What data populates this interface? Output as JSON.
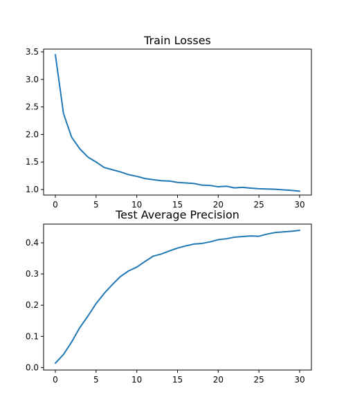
{
  "chart_data": [
    {
      "type": "line",
      "title": "Train Losses",
      "xlabel": "",
      "ylabel": "",
      "xlim": [
        0,
        30
      ],
      "ylim": [
        0.9,
        3.55
      ],
      "xticks": [
        0,
        5,
        10,
        15,
        20,
        25,
        30
      ],
      "yticks": [
        1.0,
        1.5,
        2.0,
        2.5,
        3.0,
        3.5
      ],
      "ytick_labels": [
        "1.0",
        "1.5",
        "2.0",
        "2.5",
        "3.0",
        "3.5"
      ],
      "grid": false,
      "color": "#1f77b4",
      "x": [
        0,
        1,
        2,
        3,
        4,
        5,
        6,
        7,
        8,
        9,
        10,
        11,
        12,
        13,
        14,
        15,
        16,
        17,
        18,
        19,
        20,
        21,
        22,
        23,
        24,
        25,
        26,
        27,
        28,
        29,
        30
      ],
      "series": [
        {
          "values": [
            3.45,
            2.38,
            1.95,
            1.74,
            1.59,
            1.5,
            1.4,
            1.36,
            1.32,
            1.27,
            1.24,
            1.2,
            1.18,
            1.16,
            1.155,
            1.13,
            1.12,
            1.11,
            1.08,
            1.075,
            1.05,
            1.06,
            1.03,
            1.04,
            1.025,
            1.015,
            1.01,
            1.005,
            0.995,
            0.985,
            0.97
          ]
        }
      ]
    },
    {
      "type": "line",
      "title": "Test Average Precision",
      "xlabel": "",
      "ylabel": "",
      "xlim": [
        0,
        30
      ],
      "ylim": [
        -0.008,
        0.46
      ],
      "xticks": [
        0,
        5,
        10,
        15,
        20,
        25,
        30
      ],
      "yticks": [
        0.0,
        0.1,
        0.2,
        0.3,
        0.4
      ],
      "ytick_labels": [
        "0.0",
        "0.1",
        "0.2",
        "0.3",
        "0.4"
      ],
      "grid": false,
      "color": "#1f77b4",
      "x": [
        0,
        1,
        2,
        3,
        4,
        5,
        6,
        7,
        8,
        9,
        10,
        11,
        12,
        13,
        14,
        15,
        16,
        17,
        18,
        19,
        20,
        21,
        22,
        23,
        24,
        25,
        26,
        27,
        28,
        29,
        30
      ],
      "series": [
        {
          "values": [
            0.014,
            0.042,
            0.082,
            0.128,
            0.165,
            0.205,
            0.238,
            0.266,
            0.292,
            0.31,
            0.322,
            0.34,
            0.357,
            0.364,
            0.374,
            0.383,
            0.39,
            0.396,
            0.398,
            0.403,
            0.41,
            0.413,
            0.418,
            0.42,
            0.422,
            0.421,
            0.428,
            0.433,
            0.435,
            0.437,
            0.44
          ]
        }
      ]
    }
  ]
}
